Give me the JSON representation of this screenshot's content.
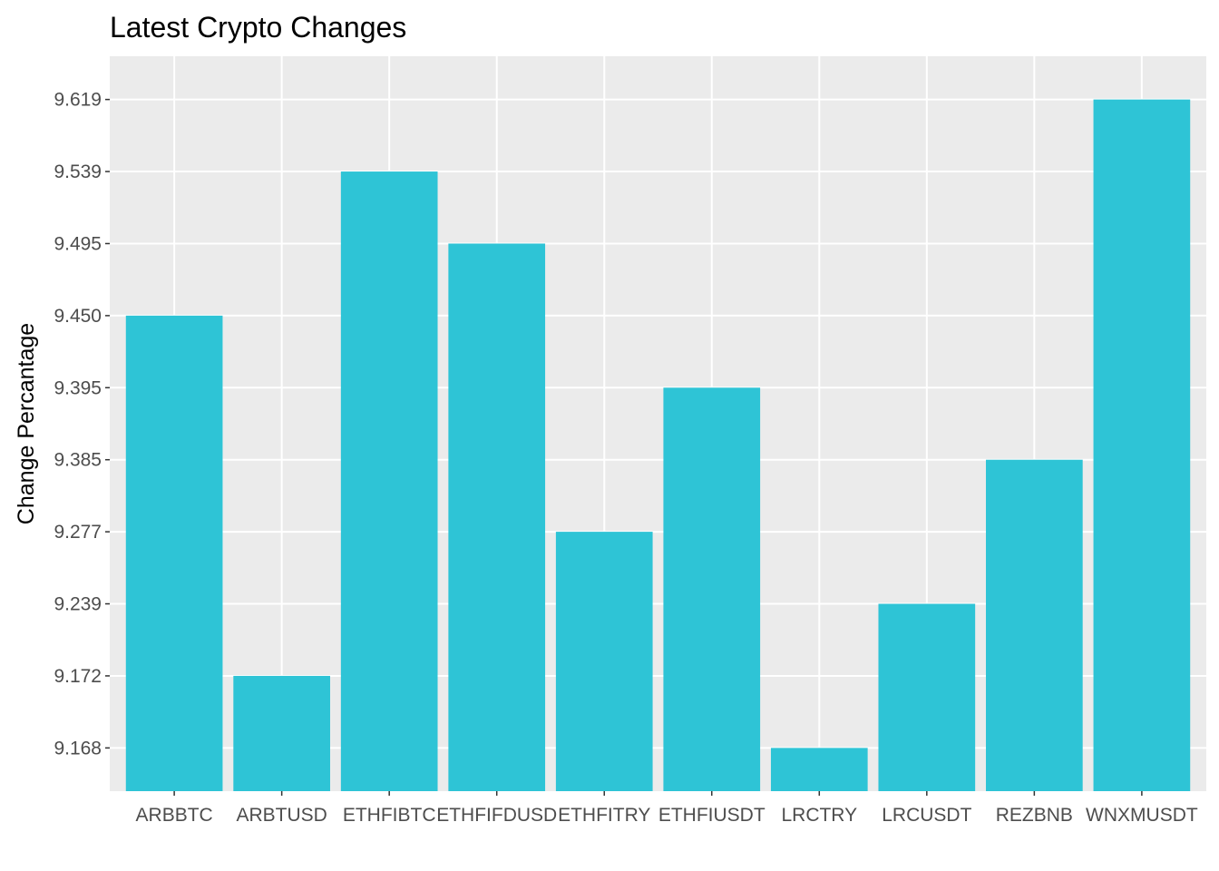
{
  "chart_data": {
    "type": "bar",
    "title": "Latest Crypto Changes",
    "xlabel": "",
    "ylabel": "Change Percantage",
    "categories": [
      "ARBBTC",
      "ARBTUSD",
      "ETHFIBTC",
      "ETHFIFDUSD",
      "ETHFITRY",
      "ETHFIUSDT",
      "LRCTRY",
      "LRCUSDT",
      "REZBNB",
      "WNXMUSDT"
    ],
    "values": [
      9.45,
      9.172,
      9.539,
      9.495,
      9.277,
      9.395,
      9.168,
      9.239,
      9.385,
      9.619
    ],
    "y_ticks": [
      "9.168",
      "9.172",
      "9.239",
      "9.277",
      "9.385",
      "9.395",
      "9.450",
      "9.495",
      "9.539",
      "9.619"
    ],
    "y_axis_discrete": true,
    "grid": true,
    "legend": "none",
    "colors": {
      "bar": "#2EC4D6",
      "panel": "#EBEBEB",
      "grid": "#FFFFFF",
      "tick_text": "#4D4D4D",
      "text": "#000000"
    }
  }
}
